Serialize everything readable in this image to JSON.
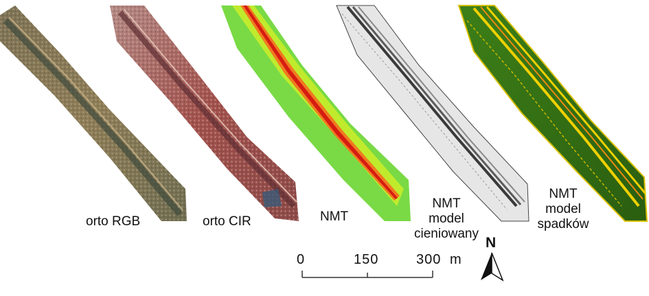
{
  "panels": [
    {
      "label": "orto RGB"
    },
    {
      "label": "orto CIR"
    },
    {
      "label": "NMT"
    },
    {
      "label_lines": [
        "NMT",
        "model",
        "cieniowany"
      ]
    },
    {
      "label_lines": [
        "NMT",
        "model",
        "spadków"
      ]
    }
  ],
  "scale_bar": {
    "ticks": [
      "0",
      "150",
      "300"
    ],
    "unit": "m"
  },
  "north_arrow": {
    "letter": "N",
    "icon": "north-arrow-icon"
  },
  "colors": {
    "rgb_base": "#8a7a55",
    "cir_base": "#a4554f",
    "nmt_low": "#7fe040",
    "nmt_high": "#e02010",
    "hillshade": "#bdbdbd",
    "slope_base": "#2f6b12",
    "slope_high": "#f0d000"
  }
}
